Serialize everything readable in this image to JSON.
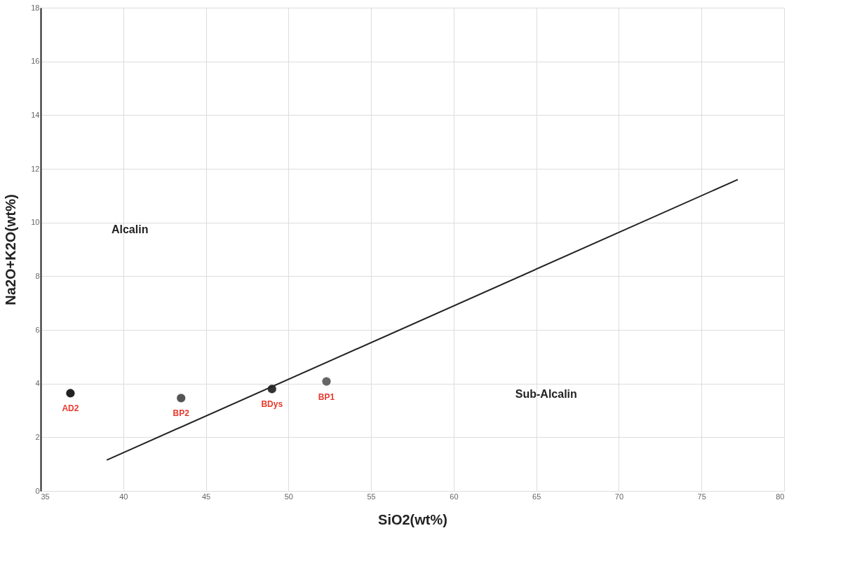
{
  "chart_data": {
    "type": "scatter",
    "xlabel": "SiO2(wt%)",
    "ylabel": "Na2O+K2O(wt%)",
    "xlim": [
      35,
      80
    ],
    "xticks": [
      35,
      40,
      45,
      50,
      55,
      60,
      65,
      70,
      75,
      80
    ],
    "ylim": [
      0,
      18
    ],
    "yticks": [
      0,
      2,
      4,
      6,
      8,
      10,
      12,
      14,
      16,
      18
    ],
    "grid": true,
    "series": [
      {
        "x": [
          36.8,
          43.5,
          49.0,
          52.3
        ],
        "values": [
          3.64,
          3.46,
          3.8,
          4.08
        ],
        "colors": [
          "#222222",
          "#555555",
          "#333333",
          "#666666"
        ],
        "marker": "circle",
        "value_labels": [
          "AD2",
          "BP2",
          "BDys",
          "BP1"
        ]
      },
      {
        "type": "line",
        "x": [
          39.0,
          77.2
        ],
        "values": [
          1.15,
          11.6
        ],
        "color": "#222222",
        "line_style": "solid"
      }
    ],
    "annotations": [
      "Alcalin",
      "Sub-Alcalin"
    ]
  }
}
